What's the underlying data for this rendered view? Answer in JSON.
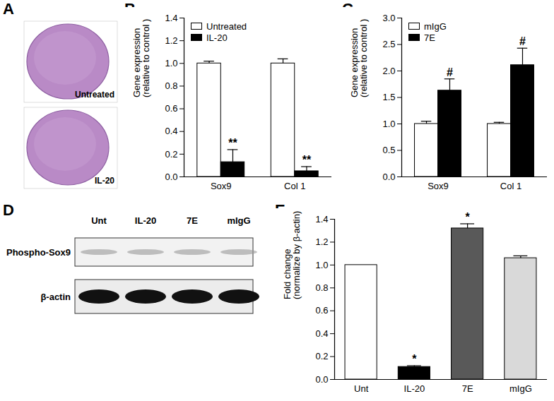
{
  "chart_data": [
    {
      "panel": "B",
      "type": "bar",
      "ylabel": "Gene expression\n(relative to control )",
      "categories": [
        "Sox9",
        "Col 1"
      ],
      "series": [
        {
          "name": "Untreated",
          "color": "#ffffff",
          "values": [
            1.0,
            1.0
          ],
          "errors": [
            0.02,
            0.04
          ]
        },
        {
          "name": "IL-20",
          "color": "#000000",
          "values": [
            0.13,
            0.05
          ],
          "errors": [
            0.11,
            0.04
          ]
        }
      ],
      "ylim": [
        0,
        1.4
      ],
      "yticks": [
        {
          "value": 0,
          "label": "0.0"
        },
        0.2,
        0.4,
        0.6,
        0.8,
        {
          "value": 1,
          "label": "1.0"
        },
        1.2,
        1.4
      ],
      "legend": "upper left",
      "annotations": [
        {
          "text": "**",
          "category": "Sox9",
          "series": "IL-20"
        },
        {
          "text": "**",
          "category": "Col 1",
          "series": "IL-20"
        }
      ]
    },
    {
      "panel": "C",
      "type": "bar",
      "ylabel": "Gene expression\n(relative to control )",
      "categories": [
        "Sox9",
        "Col 1"
      ],
      "series": [
        {
          "name": "mIgG",
          "color": "#ffffff",
          "values": [
            1.0,
            1.0
          ],
          "errors": [
            0.05,
            0.03
          ]
        },
        {
          "name": "7E",
          "color": "#000000",
          "values": [
            1.63,
            2.11
          ],
          "errors": [
            0.22,
            0.32
          ]
        }
      ],
      "ylim": [
        0,
        3
      ],
      "yticks": [
        {
          "value": 0,
          "label": "0.0"
        },
        0.5,
        {
          "value": 1,
          "label": "1.0"
        },
        1.5,
        {
          "value": 2,
          "label": "2.0"
        },
        2.5,
        {
          "value": 3,
          "label": "3.0"
        }
      ],
      "legend": "upper left",
      "annotations": [
        {
          "text": "#",
          "category": "Sox9",
          "series": "7E"
        },
        {
          "text": "#",
          "category": "Col 1",
          "series": "7E"
        }
      ]
    },
    {
      "panel": "E",
      "type": "bar",
      "ylabel": "Fold change\n(normalize by β-actin)",
      "categories": [
        "Unt",
        "IL-20",
        "7E",
        "mIgG"
      ],
      "values": [
        1.0,
        0.11,
        1.32,
        1.06
      ],
      "errors": [
        0,
        0.01,
        0.04,
        0.02
      ],
      "colors": [
        "#ffffff",
        "#000000",
        "#595959",
        "#d9d9d9"
      ],
      "ylim": [
        0,
        1.4
      ],
      "yticks": [
        {
          "value": 0,
          "label": "0.0"
        },
        0.2,
        0.4,
        0.6,
        0.8,
        {
          "value": 1,
          "label": "1.0"
        },
        1.2,
        1.4
      ],
      "annotations": [
        {
          "text": "*",
          "category": "IL-20"
        },
        {
          "text": "*",
          "category": "7E"
        }
      ]
    }
  ],
  "panels": {
    "A": {
      "panel": "A",
      "images": [
        "Untreated",
        "IL-20"
      ]
    },
    "D": {
      "panel": "D",
      "lanes": [
        "Unt",
        "IL-20",
        "7E",
        "mIgG"
      ],
      "bands": [
        "Phospho-Sox9",
        "β-actin"
      ]
    }
  }
}
